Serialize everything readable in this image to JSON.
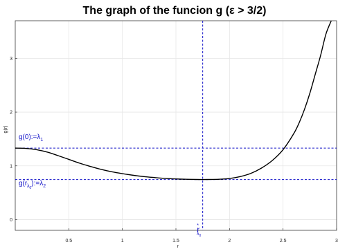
{
  "chart_data": {
    "type": "line",
    "title": "The graph of the funcion g (ε > 3/2)",
    "xlabel": "r",
    "ylabel": "g(r)",
    "xlim": [
      0.0,
      3.0
    ],
    "ylim": [
      -0.2,
      3.7
    ],
    "x_ticks": [
      0.5,
      1,
      1.5,
      2,
      2.5,
      3
    ],
    "x_tick_labels": [
      "0.5",
      "1",
      "1.5",
      "2",
      "2.5",
      "3"
    ],
    "y_ticks": [
      0,
      1,
      2,
      3
    ],
    "y_tick_labels": [
      "0",
      "1",
      "2",
      "3"
    ],
    "grid": true,
    "series": [
      {
        "color": "#000000",
        "x": [
          0.0,
          0.1,
          0.2,
          0.3,
          0.4,
          0.5,
          0.6,
          0.7,
          0.8,
          0.9,
          1.0,
          1.1,
          1.2,
          1.3,
          1.4,
          1.5,
          1.6,
          1.7,
          1.75,
          1.8,
          1.9,
          2.0,
          2.1,
          2.2,
          2.3,
          2.4,
          2.5,
          2.6,
          2.65,
          2.7,
          2.75,
          2.8,
          2.85,
          2.9,
          2.95
        ],
        "y": [
          1.33,
          1.325,
          1.3,
          1.255,
          1.19,
          1.12,
          1.05,
          0.99,
          0.935,
          0.89,
          0.855,
          0.825,
          0.8,
          0.782,
          0.766,
          0.756,
          0.75,
          0.746,
          0.745,
          0.746,
          0.75,
          0.765,
          0.8,
          0.86,
          0.96,
          1.1,
          1.3,
          1.6,
          1.8,
          2.05,
          2.35,
          2.7,
          3.05,
          3.45,
          3.7
        ]
      }
    ],
    "reference_lines": [
      {
        "orientation": "horizontal",
        "value": 1.33,
        "color": "#1010c8",
        "style": "dashed"
      },
      {
        "orientation": "horizontal",
        "value": 0.745,
        "color": "#1010c8",
        "style": "dashed"
      },
      {
        "orientation": "vertical",
        "value": 1.75,
        "color": "#1010c8",
        "style": "dashed"
      }
    ],
    "annotations": {
      "lambda1": {
        "text": "g(0):=λ",
        "sub": "1"
      },
      "lambda2": {
        "text_pre": "g(r",
        "text_star": "*",
        "text_inner_sub": "λ",
        "text_inner_sub2": "0",
        "text_post": "):=λ",
        "sub": "2"
      },
      "rstar": {
        "text": "r",
        "star": "*",
        "sub": "λ",
        "sub2": "0"
      }
    }
  }
}
